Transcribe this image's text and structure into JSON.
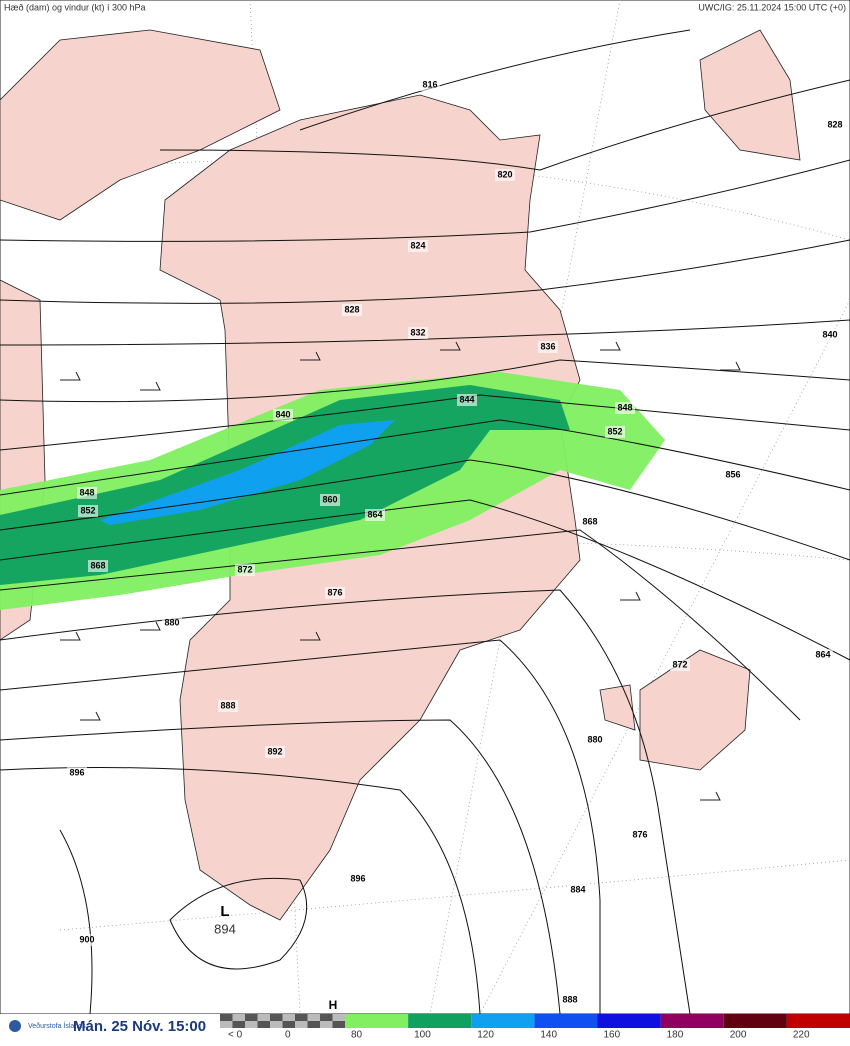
{
  "header": {
    "left": "Hæð (dam) og vindur (kt) í 300 hPa",
    "right": "UWC/IG: 25.11.2024 15:00 UTC (+0)"
  },
  "contour_labels": [
    816,
    820,
    824,
    828,
    832,
    836,
    840,
    840,
    844,
    848,
    848,
    852,
    852,
    856,
    860,
    864,
    864,
    868,
    868,
    872,
    872,
    876,
    876,
    880,
    880,
    884,
    888,
    888,
    892,
    896,
    896,
    900,
    828
  ],
  "low": {
    "letter": "L",
    "value": 894
  },
  "high": {
    "letter": "H"
  },
  "footer": {
    "logo": "Veðurstofa Íslands",
    "time": "Mán. 25 Nóv. 15:00"
  },
  "legend": {
    "ticks": [
      "< 0",
      0,
      80,
      100,
      120,
      140,
      160,
      180,
      200,
      220
    ],
    "colors": [
      "#80f060",
      "#10a060",
      "#10a0f0",
      "#1050f0",
      "#1010e0",
      "#900060",
      "#600010",
      "#c00000"
    ]
  }
}
